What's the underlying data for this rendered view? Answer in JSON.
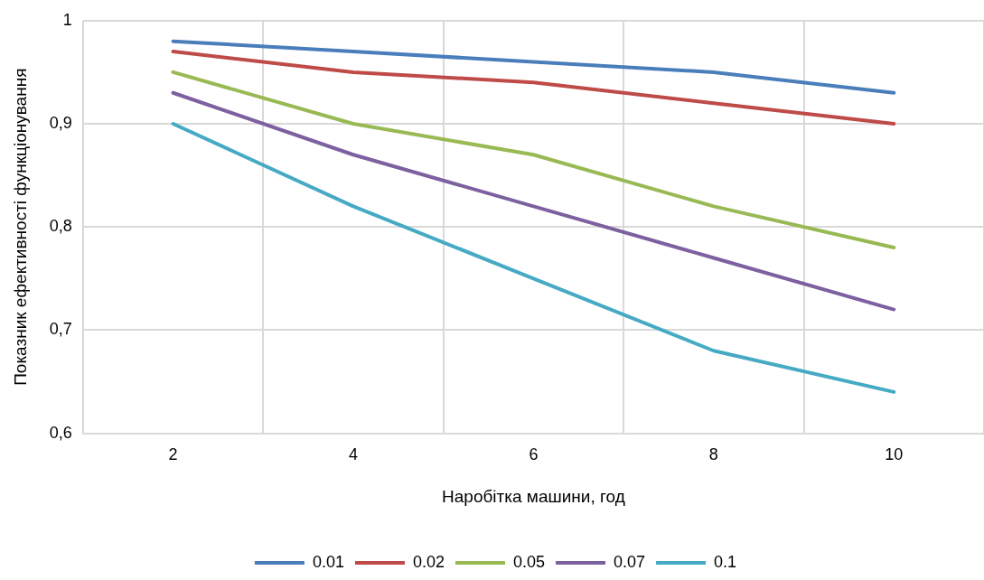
{
  "chart_data": {
    "type": "line",
    "xlabel": "Наробітка машини, год",
    "ylabel": "Показник ефективності функціонування",
    "categories": [
      "2",
      "4",
      "6",
      "8",
      "10"
    ],
    "series": [
      {
        "name": "0.01",
        "color": "#4a7ebb",
        "values": [
          0.98,
          0.97,
          0.96,
          0.95,
          0.93
        ]
      },
      {
        "name": "0.02",
        "color": "#be4b48",
        "values": [
          0.97,
          0.95,
          0.94,
          0.92,
          0.9
        ]
      },
      {
        "name": "0.05",
        "color": "#98b954",
        "values": [
          0.95,
          0.9,
          0.87,
          0.82,
          0.78
        ]
      },
      {
        "name": "0.07",
        "color": "#7d60a0",
        "values": [
          0.93,
          0.87,
          0.82,
          0.77,
          0.72
        ]
      },
      {
        "name": "0.1",
        "color": "#46aac5",
        "values": [
          0.9,
          0.82,
          0.75,
          0.68,
          0.64
        ]
      }
    ],
    "ylim": [
      0.6,
      1
    ],
    "yticks": [
      {
        "value": 0.6,
        "label": "0,6"
      },
      {
        "value": 0.7,
        "label": "0,7"
      },
      {
        "value": 0.8,
        "label": "0,8"
      },
      {
        "value": 0.9,
        "label": "0,9"
      },
      {
        "value": 1,
        "label": "1"
      }
    ],
    "grid": true,
    "legend": "bottom",
    "marker": "none",
    "line_style": "solid"
  }
}
